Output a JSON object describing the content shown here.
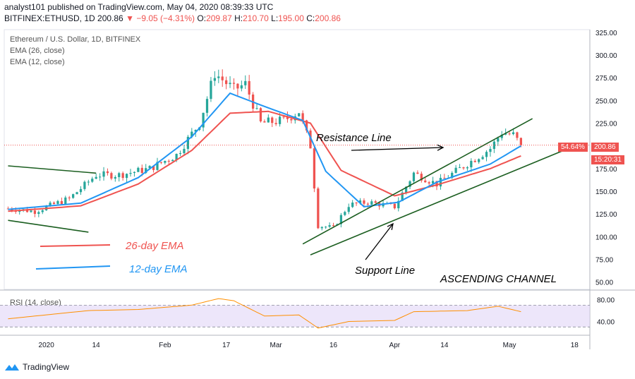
{
  "header": {
    "publisher": "analyst101 published on TradingView.com, May 04, 2020 08:39:33 UTC",
    "symbol": "BITFINEX:ETHUSD, 1D",
    "last": "200.86",
    "change_arrow": "▼",
    "change": "−9.05 (−4.31%)",
    "o_label": "O:",
    "o": "209.87",
    "h_label": "H:",
    "h": "210.70",
    "l_label": "L:",
    "l": "195.00",
    "c_label": "C:",
    "c": "200.86"
  },
  "legend": {
    "title": "Ethereum / U.S. Dollar, 1D, BITFINEX",
    "ema26": "EMA (26, close)",
    "ema12": "EMA (12, close)",
    "rsi": "RSI (14, close)"
  },
  "annotations": {
    "resistance": "Resistance Line",
    "support": "Support Line",
    "channel": "ASCENDING CHANNEL",
    "ema26_label": "26-day EMA",
    "ema12_label": "12-day EMA"
  },
  "price_tags": {
    "pct": "54.64%",
    "last": "200.86",
    "timer": "15:20:31"
  },
  "footer": {
    "brand": "TradingView"
  },
  "colors": {
    "up": "#26a69a",
    "down": "#ef5350",
    "ema26": "#ef5350",
    "ema12": "#2196f3",
    "trend": "#1b5e20",
    "rsi": "#ff8f00",
    "rsi_band": "#e1d5f7"
  },
  "chart_data": {
    "type": "candlestick",
    "y_axis": {
      "min": 50,
      "max": 325,
      "ticks": [
        50,
        75,
        100,
        125,
        150,
        175,
        200,
        225,
        250,
        275,
        300,
        325
      ]
    },
    "x_ticks": [
      "2020",
      "14",
      "Feb",
      "17",
      "Mar",
      "16",
      "Apr",
      "14",
      "May",
      "18"
    ],
    "rsi_ticks": [
      40.0,
      80.0
    ],
    "anchors": [
      [
        "2019-12-22",
        131
      ],
      [
        "2019-12-29",
        128
      ],
      [
        "2020-01-07",
        142
      ],
      [
        "2020-01-14",
        168
      ],
      [
        "2020-01-20",
        168
      ],
      [
        "2020-01-28",
        175
      ],
      [
        "2020-02-04",
        190
      ],
      [
        "2020-02-10",
        225
      ],
      [
        "2020-02-14",
        280
      ],
      [
        "2020-02-19",
        262
      ],
      [
        "2020-02-22",
        268
      ],
      [
        "2020-02-26",
        225
      ],
      [
        "2020-03-03",
        228
      ],
      [
        "2020-03-07",
        238
      ],
      [
        "2020-03-10",
        200
      ],
      [
        "2020-03-12",
        112
      ],
      [
        "2020-03-16",
        110
      ],
      [
        "2020-03-20",
        135
      ],
      [
        "2020-03-25",
        138
      ],
      [
        "2020-04-01",
        133
      ],
      [
        "2020-04-06",
        170
      ],
      [
        "2020-04-12",
        158
      ],
      [
        "2020-04-17",
        172
      ],
      [
        "2020-04-22",
        186
      ],
      [
        "2020-04-26",
        197
      ],
      [
        "2020-04-29",
        215
      ],
      [
        "2020-05-02",
        212
      ],
      [
        "2020-05-04",
        200.86
      ]
    ],
    "ema12_anchors": [
      [
        "2019-12-22",
        130
      ],
      [
        "2020-01-10",
        137
      ],
      [
        "2020-01-25",
        165
      ],
      [
        "2020-02-08",
        210
      ],
      [
        "2020-02-18",
        258
      ],
      [
        "2020-02-26",
        245
      ],
      [
        "2020-03-08",
        228
      ],
      [
        "2020-03-14",
        172
      ],
      [
        "2020-03-24",
        133
      ],
      [
        "2020-04-02",
        138
      ],
      [
        "2020-04-12",
        160
      ],
      [
        "2020-04-26",
        180
      ],
      [
        "2020-05-04",
        200
      ]
    ],
    "ema26_anchors": [
      [
        "2019-12-22",
        128
      ],
      [
        "2020-01-10",
        134
      ],
      [
        "2020-01-25",
        158
      ],
      [
        "2020-02-08",
        195
      ],
      [
        "2020-02-18",
        236
      ],
      [
        "2020-02-28",
        238
      ],
      [
        "2020-03-10",
        225
      ],
      [
        "2020-03-18",
        173
      ],
      [
        "2020-04-01",
        145
      ],
      [
        "2020-04-12",
        157
      ],
      [
        "2020-04-26",
        175
      ],
      [
        "2020-05-04",
        189
      ]
    ],
    "rsi_anchors": [
      [
        "2019-12-22",
        45
      ],
      [
        "2020-01-12",
        60
      ],
      [
        "2020-01-25",
        62
      ],
      [
        "2020-02-08",
        70
      ],
      [
        "2020-02-15",
        82
      ],
      [
        "2020-02-19",
        78
      ],
      [
        "2020-02-27",
        50
      ],
      [
        "2020-03-07",
        52
      ],
      [
        "2020-03-12",
        28
      ],
      [
        "2020-03-20",
        40
      ],
      [
        "2020-04-01",
        42
      ],
      [
        "2020-04-06",
        58
      ],
      [
        "2020-04-20",
        60
      ],
      [
        "2020-04-28",
        68
      ],
      [
        "2020-05-04",
        58
      ]
    ],
    "trendlines": {
      "channel_top": [
        [
          "2020-03-08",
          92
        ],
        [
          "2020-05-07",
          230
        ]
      ],
      "channel_bottom": [
        [
          "2020-03-10",
          80
        ],
        [
          "2020-05-18",
          200
        ]
      ],
      "early_top": [
        [
          "2019-12-22",
          178
        ],
        [
          "2020-01-14",
          170
        ]
      ],
      "early_bottom": [
        [
          "2019-12-22",
          118
        ],
        [
          "2020-01-12",
          105
        ]
      ]
    },
    "last_price": 200.86
  }
}
